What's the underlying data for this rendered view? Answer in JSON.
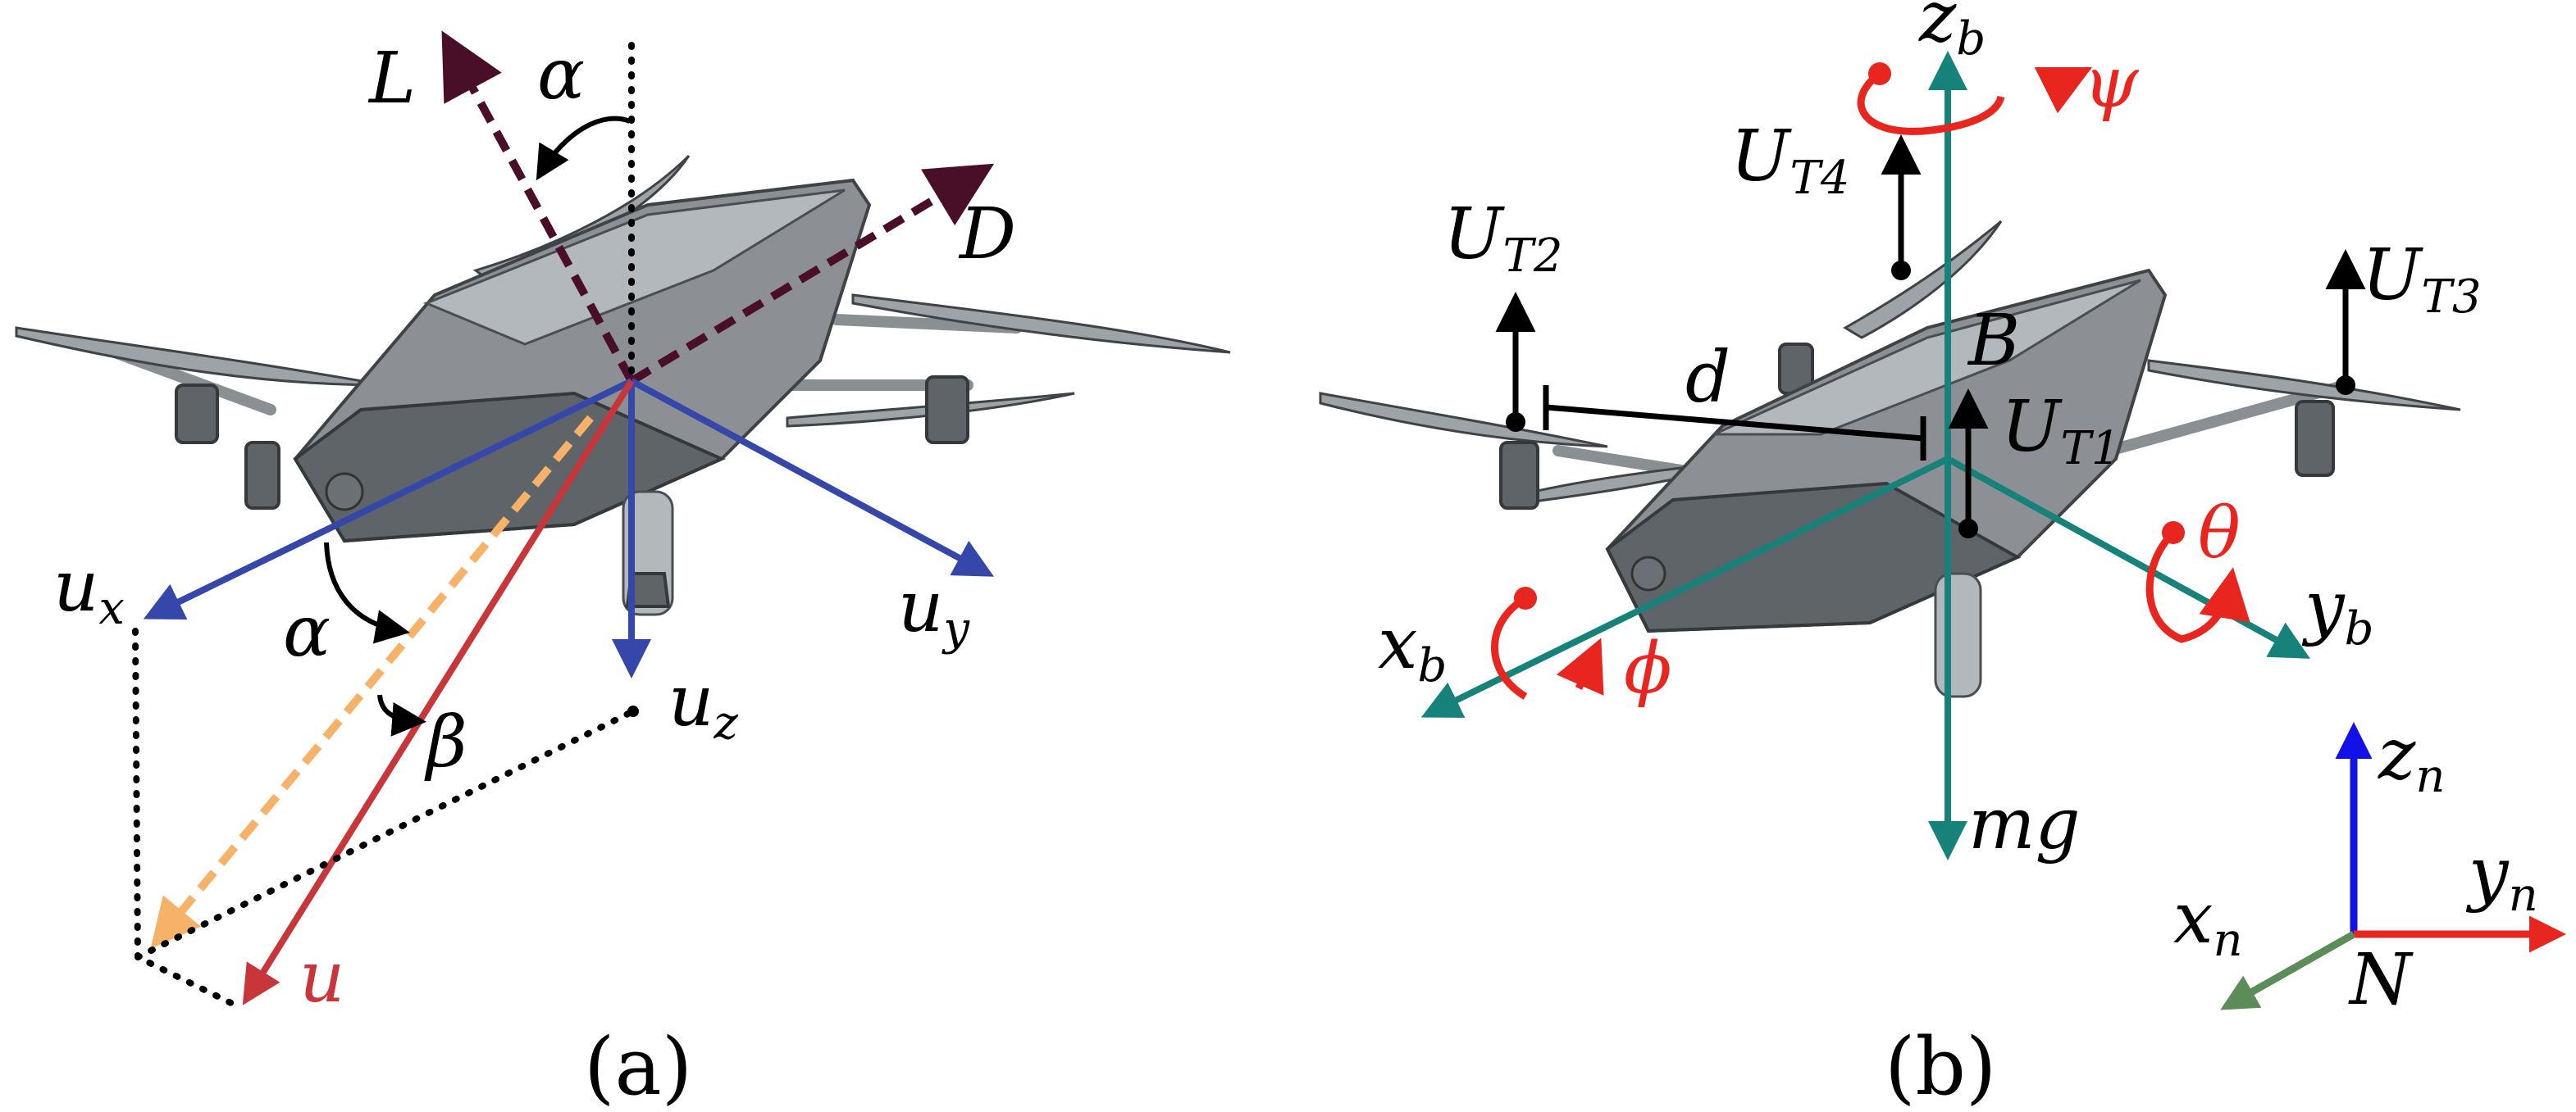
{
  "panel_a": {
    "caption": "(a)",
    "labels": {
      "L": "L",
      "D": "D",
      "alpha_top": "α",
      "alpha_mid": "α",
      "beta": "β",
      "ux_main": "u",
      "ux_sub": "x",
      "uy_main": "u",
      "uy_sub": "y",
      "uz_main": "u",
      "uz_sub": "z",
      "u": "u"
    },
    "colors": {
      "aero": "#4a0f28",
      "velocity_axes": "#3547a8",
      "u": "#c8363a",
      "u_projection": "#f7b26a",
      "guide": "#000000"
    }
  },
  "panel_b": {
    "caption": "(b)",
    "labels": {
      "zb_main": "z",
      "zb_sub": "b",
      "xb_main": "x",
      "xb_sub": "b",
      "yb_main": "y",
      "yb_sub": "b",
      "psi": "ψ",
      "theta": "θ",
      "phi": "ϕ",
      "ut1_main": "U",
      "ut1_sub": "T1",
      "ut2_main": "U",
      "ut2_sub": "T2",
      "ut3_main": "U",
      "ut3_sub": "T3",
      "ut4_main": "U",
      "ut4_sub": "T4",
      "B": "B",
      "d": "d",
      "mg": "mg",
      "zn_main": "z",
      "zn_sub": "n",
      "yn_main": "y",
      "yn_sub": "n",
      "xn_main": "x",
      "xn_sub": "n",
      "N": "N"
    },
    "colors": {
      "body_axes": "#17827a",
      "rotation": "#e8251e",
      "thrust": "#000000",
      "inertial_z": "#1212e6",
      "inertial_y": "#e8251e",
      "inertial_x": "#5c8c57"
    }
  }
}
